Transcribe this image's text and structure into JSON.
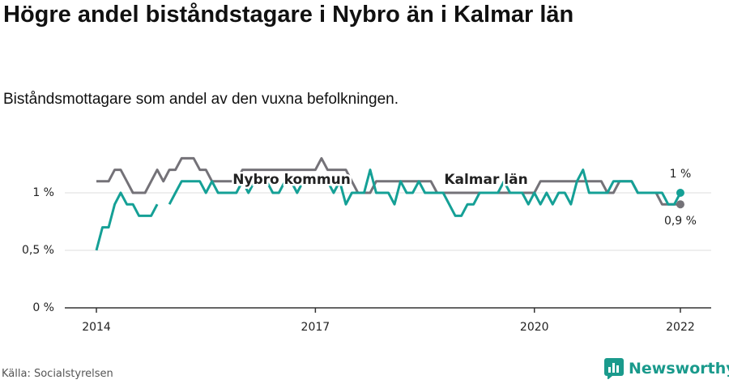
{
  "chart_data": {
    "type": "line",
    "title": "Högre andel biståndstagare i Nybro än i Kalmar län",
    "subtitle": "Biståndsmottagare som andel av den vuxna befolkningen.",
    "source": "Källa: Socialstyrelsen",
    "brand": "Newsworthy",
    "x": [
      2014,
      2014.083,
      2014.167,
      2014.25,
      2014.333,
      2014.417,
      2014.5,
      2014.583,
      2014.667,
      2014.75,
      2014.833,
      2014.917,
      2015,
      2015.083,
      2015.167,
      2015.25,
      2015.333,
      2015.417,
      2015.5,
      2015.583,
      2015.667,
      2015.75,
      2015.833,
      2015.917,
      2016,
      2016.083,
      2016.167,
      2016.25,
      2016.333,
      2016.417,
      2016.5,
      2016.583,
      2016.667,
      2016.75,
      2016.833,
      2016.917,
      2017,
      2017.083,
      2017.167,
      2017.25,
      2017.333,
      2017.417,
      2017.5,
      2017.583,
      2017.667,
      2017.75,
      2017.833,
      2017.917,
      2018,
      2018.083,
      2018.167,
      2018.25,
      2018.333,
      2018.417,
      2018.5,
      2018.583,
      2018.667,
      2018.75,
      2018.833,
      2018.917,
      2019,
      2019.083,
      2019.167,
      2019.25,
      2019.333,
      2019.417,
      2019.5,
      2019.583,
      2019.667,
      2019.75,
      2019.833,
      2019.917,
      2020,
      2020.083,
      2020.167,
      2020.25,
      2020.333,
      2020.417,
      2020.5,
      2020.583,
      2020.667,
      2020.75,
      2020.833,
      2020.917,
      2021,
      2021.083,
      2021.167,
      2021.25,
      2021.333,
      2021.417,
      2021.5,
      2021.583,
      2021.667,
      2021.75,
      2021.833,
      2021.917,
      2022
    ],
    "series": [
      {
        "name": "Kalmar län",
        "color": "#747278",
        "end_label": "0,9 %",
        "values": [
          1.1,
          1.1,
          1.1,
          1.2,
          1.2,
          1.1,
          1.0,
          1.0,
          1.0,
          1.1,
          1.2,
          1.1,
          1.2,
          1.2,
          1.3,
          1.3,
          1.3,
          1.2,
          1.2,
          1.1,
          1.1,
          1.1,
          1.1,
          1.1,
          1.2,
          1.2,
          1.2,
          1.2,
          1.2,
          1.2,
          1.2,
          1.2,
          1.2,
          1.2,
          1.2,
          1.2,
          1.2,
          1.3,
          1.2,
          1.2,
          1.2,
          1.2,
          1.1,
          1.0,
          1.0,
          1.0,
          1.1,
          1.1,
          1.1,
          1.1,
          1.1,
          1.1,
          1.1,
          1.1,
          1.1,
          1.1,
          1.0,
          1.0,
          1.0,
          1.0,
          1.0,
          1.0,
          1.0,
          1.0,
          1.0,
          1.0,
          1.0,
          1.0,
          1.0,
          1.0,
          1.0,
          1.0,
          1.0,
          1.1,
          1.1,
          1.1,
          1.1,
          1.1,
          1.1,
          1.1,
          1.1,
          1.1,
          1.1,
          1.1,
          1.0,
          1.0,
          1.1,
          1.1,
          1.1,
          1.0,
          1.0,
          1.0,
          1.0,
          0.9,
          0.9,
          0.9,
          0.9
        ]
      },
      {
        "name": "Nybro kommun",
        "color": "#15a096",
        "end_label": "1 %",
        "values": [
          0.5,
          0.7,
          0.7,
          0.9,
          1.0,
          0.9,
          0.9,
          0.8,
          0.8,
          0.8,
          0.9,
          null,
          0.9,
          1.0,
          1.1,
          1.1,
          1.1,
          1.1,
          1.0,
          1.1,
          1.0,
          1.0,
          1.0,
          1.0,
          1.1,
          1.0,
          1.1,
          1.1,
          1.1,
          1.0,
          1.0,
          1.1,
          1.1,
          1.0,
          1.1,
          1.1,
          1.1,
          1.1,
          1.1,
          1.0,
          1.1,
          0.9,
          1.0,
          1.0,
          1.0,
          1.2,
          1.0,
          1.0,
          1.0,
          0.9,
          1.1,
          1.0,
          1.0,
          1.1,
          1.0,
          1.0,
          1.0,
          1.0,
          0.9,
          0.8,
          0.8,
          0.9,
          0.9,
          1.0,
          1.0,
          1.0,
          1.0,
          1.1,
          1.0,
          1.0,
          1.0,
          0.9,
          1.0,
          0.9,
          1.0,
          0.9,
          1.0,
          1.0,
          0.9,
          1.1,
          1.2,
          1.0,
          1.0,
          1.0,
          1.0,
          1.1,
          1.1,
          1.1,
          1.1,
          1.0,
          1.0,
          1.0,
          1.0,
          1.0,
          0.9,
          0.9,
          1.0
        ]
      }
    ],
    "xlim": [
      2013.567,
      2022.422
    ],
    "xticks": [
      2014,
      2017,
      2020,
      2022
    ],
    "ylim": [
      0,
      1.4
    ],
    "yticks": [
      {
        "value": 0,
        "label": "0 %"
      },
      {
        "value": 0.5,
        "label": "0,5 %"
      },
      {
        "value": 1,
        "label": "1 %"
      }
    ],
    "grid": true
  }
}
